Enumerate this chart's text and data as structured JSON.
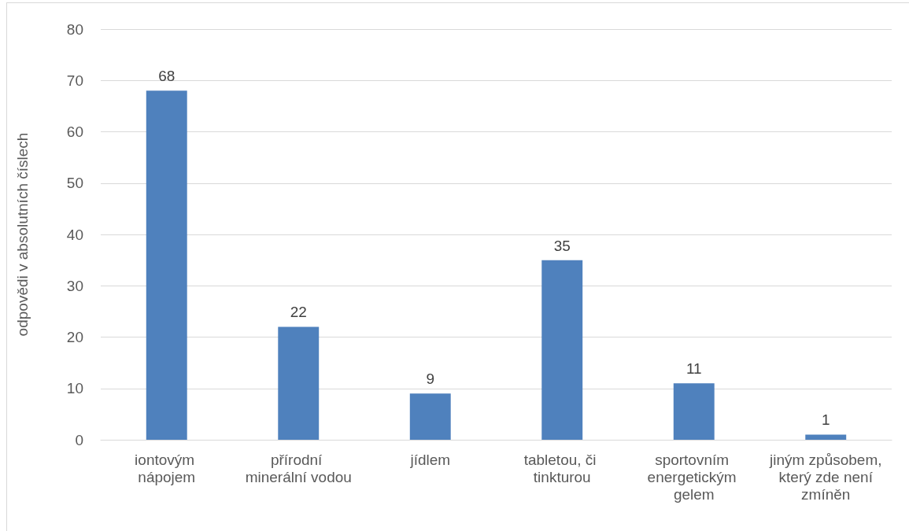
{
  "chart_data": {
    "type": "bar",
    "ylabel": "odpovědi v absolutních číslech",
    "categories": [
      "iontovým nápojem",
      "přírodní minerální vodou",
      "jídlem",
      "tabletou, či tinkturou",
      "sportovním energetickým gelem",
      "jiným způsobem, který zde není zmíněn"
    ],
    "values": [
      68,
      22,
      9,
      35,
      11,
      1
    ],
    "color": "#4f81bd",
    "ylim": [
      0,
      80
    ],
    "yticks": [
      0,
      10,
      20,
      30,
      40,
      50,
      60,
      70,
      80
    ],
    "grid": "y",
    "data_labels": true
  }
}
